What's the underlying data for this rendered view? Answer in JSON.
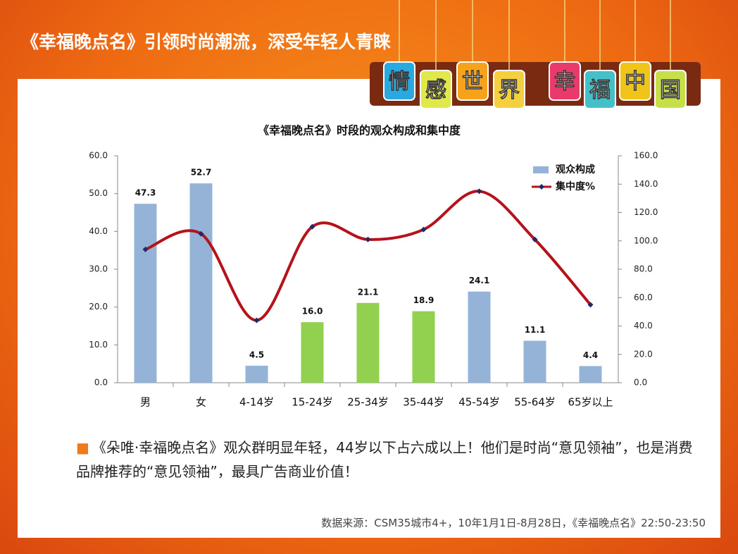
{
  "header": {
    "title": "《幸福晚点名》引领时尚潮流，深受年轻人青睐",
    "banner": [
      "情",
      "感",
      "世",
      "界",
      "幸",
      "福",
      "中",
      "国"
    ]
  },
  "chart_data": {
    "type": "bar-line",
    "title": "《幸福晚点名》时段的观众构成和集中度",
    "categories": [
      "男",
      "女",
      "4-14岁",
      "15-24岁",
      "25-34岁",
      "35-44岁",
      "45-54岁",
      "55-64岁",
      "65岁以上"
    ],
    "series": [
      {
        "name": "观众构成",
        "type": "bar",
        "color": "#95b3d7",
        "colors": [
          "#95b3d7",
          "#95b3d7",
          "#95b3d7",
          "#92d050",
          "#92d050",
          "#92d050",
          "#95b3d7",
          "#95b3d7",
          "#95b3d7"
        ],
        "values": [
          47.3,
          52.7,
          4.5,
          16.0,
          21.1,
          18.9,
          24.1,
          11.1,
          4.4
        ],
        "value_labels": [
          "47.3",
          "52.7",
          "4.5",
          "16.0",
          "21.1",
          "18.9",
          "24.1",
          "11.1",
          "4.4"
        ]
      },
      {
        "name": "集中度%",
        "type": "line",
        "axis": "y2",
        "color": "#b5121b",
        "marker_color": "#1f2a6b",
        "values": [
          94,
          105,
          44,
          110,
          101,
          108,
          135,
          101,
          55
        ]
      }
    ],
    "ylim": [
      0,
      60
    ],
    "yticks": [
      {
        "value": 0,
        "label": "0.0"
      },
      {
        "value": 10,
        "label": "10.0"
      },
      {
        "value": 20,
        "label": "20.0"
      },
      {
        "value": 30,
        "label": "30.0"
      },
      {
        "value": 40,
        "label": "40.0"
      },
      {
        "value": 50,
        "label": "50.0"
      },
      {
        "value": 60,
        "label": "60.0"
      }
    ],
    "y2lim": [
      0,
      160
    ],
    "y2ticks": [
      {
        "value": 0,
        "label": "0.0"
      },
      {
        "value": 20,
        "label": "20.0"
      },
      {
        "value": 40,
        "label": "40.0"
      },
      {
        "value": 60,
        "label": "60.0"
      },
      {
        "value": 80,
        "label": "80.0"
      },
      {
        "value": 100,
        "label": "100.0"
      },
      {
        "value": 120,
        "label": "120.0"
      },
      {
        "value": 140,
        "label": "140.0"
      },
      {
        "value": 160,
        "label": "160.0"
      }
    ],
    "legend": "top-right"
  },
  "note": "《朵唯·幸福晚点名》观众群明显年轻，44岁以下占六成以上！他们是时尚“意见领袖”，也是消费品牌推荐的“意见领袖”，最具广告商业价值！",
  "source": "数据来源：CSM35城市4+，10年1月1日-8月28日，《幸福晚点名》22:50-23:50"
}
